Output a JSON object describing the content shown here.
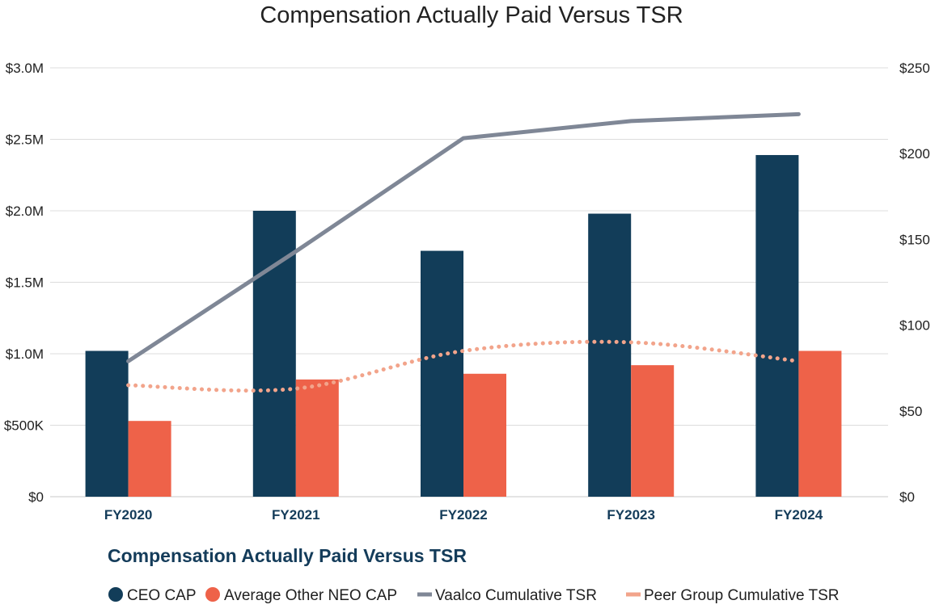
{
  "chart_data": {
    "type": "bar",
    "title": "Compensation Actually Paid Versus TSR",
    "subtitle": "Compensation Actually Paid Versus TSR",
    "categories": [
      "FY2020",
      "FY2021",
      "FY2022",
      "FY2023",
      "FY2024"
    ],
    "y_left": {
      "ticks": [
        "$0",
        "$500K",
        "$1.0M",
        "$1.5M",
        "$2.0M",
        "$2.5M",
        "$3.0M"
      ],
      "ylim": [
        0,
        3000000
      ]
    },
    "y_right": {
      "ticks": [
        "$0",
        "$50",
        "$100",
        "$150",
        "$200",
        "$250"
      ],
      "ylim": [
        0,
        250
      ]
    },
    "series": [
      {
        "name": "CEO CAP",
        "kind": "bar",
        "axis": "left",
        "color": "#123d59",
        "values": [
          1020000,
          2000000,
          1720000,
          1980000,
          2390000
        ]
      },
      {
        "name": "Average Other NEO CAP",
        "kind": "bar",
        "axis": "left",
        "color": "#ee6249",
        "values": [
          530000,
          820000,
          860000,
          920000,
          1020000
        ]
      },
      {
        "name": "Vaalco Cumulative TSR",
        "kind": "line",
        "axis": "right",
        "color": "#7f8796",
        "values": [
          79,
          143,
          209,
          219,
          223
        ]
      },
      {
        "name": "Peer Group Cumulative TSR",
        "kind": "dotted-line",
        "axis": "right",
        "color": "#f2a48b",
        "values": [
          65,
          63,
          85,
          90,
          79
        ]
      }
    ],
    "grid": true,
    "legend_position": "bottom"
  }
}
